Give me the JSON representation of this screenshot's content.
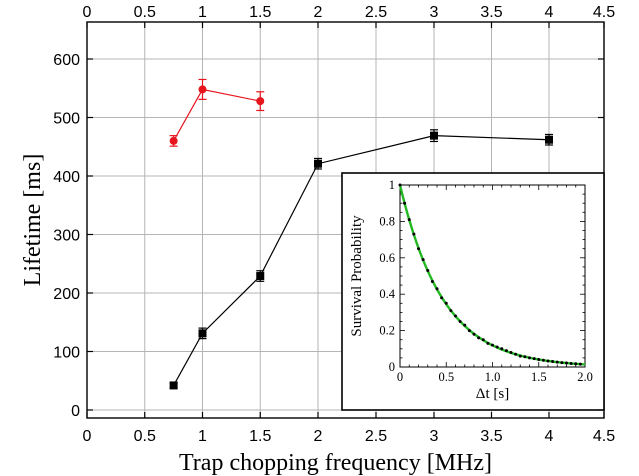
{
  "chart_data": [
    {
      "type": "line",
      "xlabel": "Trap chopping frequency [MHz]",
      "ylabel": "Lifetime [ms]",
      "xlim": [
        0,
        4.5
      ],
      "ylim": [
        -25,
        660
      ],
      "x_ticks": [
        "0",
        "0.5",
        "1",
        "1.5",
        "2",
        "2.5",
        "3",
        "3.5",
        "4",
        "4.5"
      ],
      "x_tick_values": [
        0,
        0.5,
        1,
        1.5,
        2,
        2.5,
        3,
        3.5,
        4,
        4.5
      ],
      "y_ticks": [
        "0",
        "100",
        "200",
        "300",
        "400",
        "500",
        "600"
      ],
      "y_tick_values": [
        0,
        100,
        200,
        300,
        400,
        500,
        600
      ],
      "top_x_ticks": [
        "0",
        "0.5",
        "1",
        "1.5",
        "2",
        "2.5",
        "3",
        "3.5",
        "4",
        "4.5"
      ],
      "axis_scale": "nonlinear piecewise (equal spacing 0-2 per 0.5, 2-4.5 compressed)",
      "grid": true,
      "series": [
        {
          "color": "#e8141b",
          "marker": "circle",
          "x": [
            0.75,
            1,
            1.5
          ],
          "y": [
            460,
            548,
            528
          ],
          "yerr": [
            9,
            17,
            16
          ]
        },
        {
          "color": "#000000",
          "marker": "square",
          "x": [
            0.75,
            1,
            1.5,
            2,
            3,
            4
          ],
          "y": [
            42,
            131,
            229,
            421,
            469,
            462
          ],
          "yerr": [
            4,
            9,
            9,
            9,
            10,
            9
          ]
        }
      ]
    },
    {
      "type": "line",
      "role": "inset",
      "xlabel": "Δt  [s]",
      "ylabel": "Survival Probability",
      "xlim": [
        0,
        2.0
      ],
      "ylim": [
        0,
        1.0
      ],
      "x_ticks": [
        "0",
        "0.5",
        "1.0",
        "1.5",
        "2.0"
      ],
      "x_tick_values": [
        0,
        0.5,
        1.0,
        1.5,
        2.0
      ],
      "y_ticks": [
        "0",
        "0.2",
        "0.4",
        "0.6",
        "0.8",
        "1"
      ],
      "y_tick_values": [
        0,
        0.2,
        0.4,
        0.6,
        0.8,
        1.0
      ],
      "fit_color": "#22b822",
      "points_color": "#000000",
      "decay": "exponential",
      "tau_s": 0.47,
      "points_x": [
        0,
        0.05,
        0.1,
        0.15,
        0.2,
        0.25,
        0.3,
        0.35,
        0.4,
        0.45,
        0.5,
        0.55,
        0.6,
        0.65,
        0.7,
        0.75,
        0.8,
        0.85,
        0.9,
        0.95,
        1.0,
        1.05,
        1.1,
        1.15,
        1.2,
        1.25,
        1.3,
        1.35,
        1.4,
        1.45,
        1.5,
        1.55,
        1.6,
        1.65,
        1.7,
        1.75,
        1.8,
        1.85,
        1.9,
        1.95
      ],
      "points_y": [
        1.0,
        0.9,
        0.81,
        0.73,
        0.65,
        0.59,
        0.53,
        0.47,
        0.43,
        0.38,
        0.35,
        0.31,
        0.28,
        0.25,
        0.23,
        0.2,
        0.18,
        0.16,
        0.15,
        0.13,
        0.12,
        0.11,
        0.1,
        0.09,
        0.08,
        0.07,
        0.06,
        0.056,
        0.05,
        0.046,
        0.041,
        0.037,
        0.033,
        0.03,
        0.027,
        0.024,
        0.022,
        0.019,
        0.018,
        0.016
      ]
    }
  ]
}
